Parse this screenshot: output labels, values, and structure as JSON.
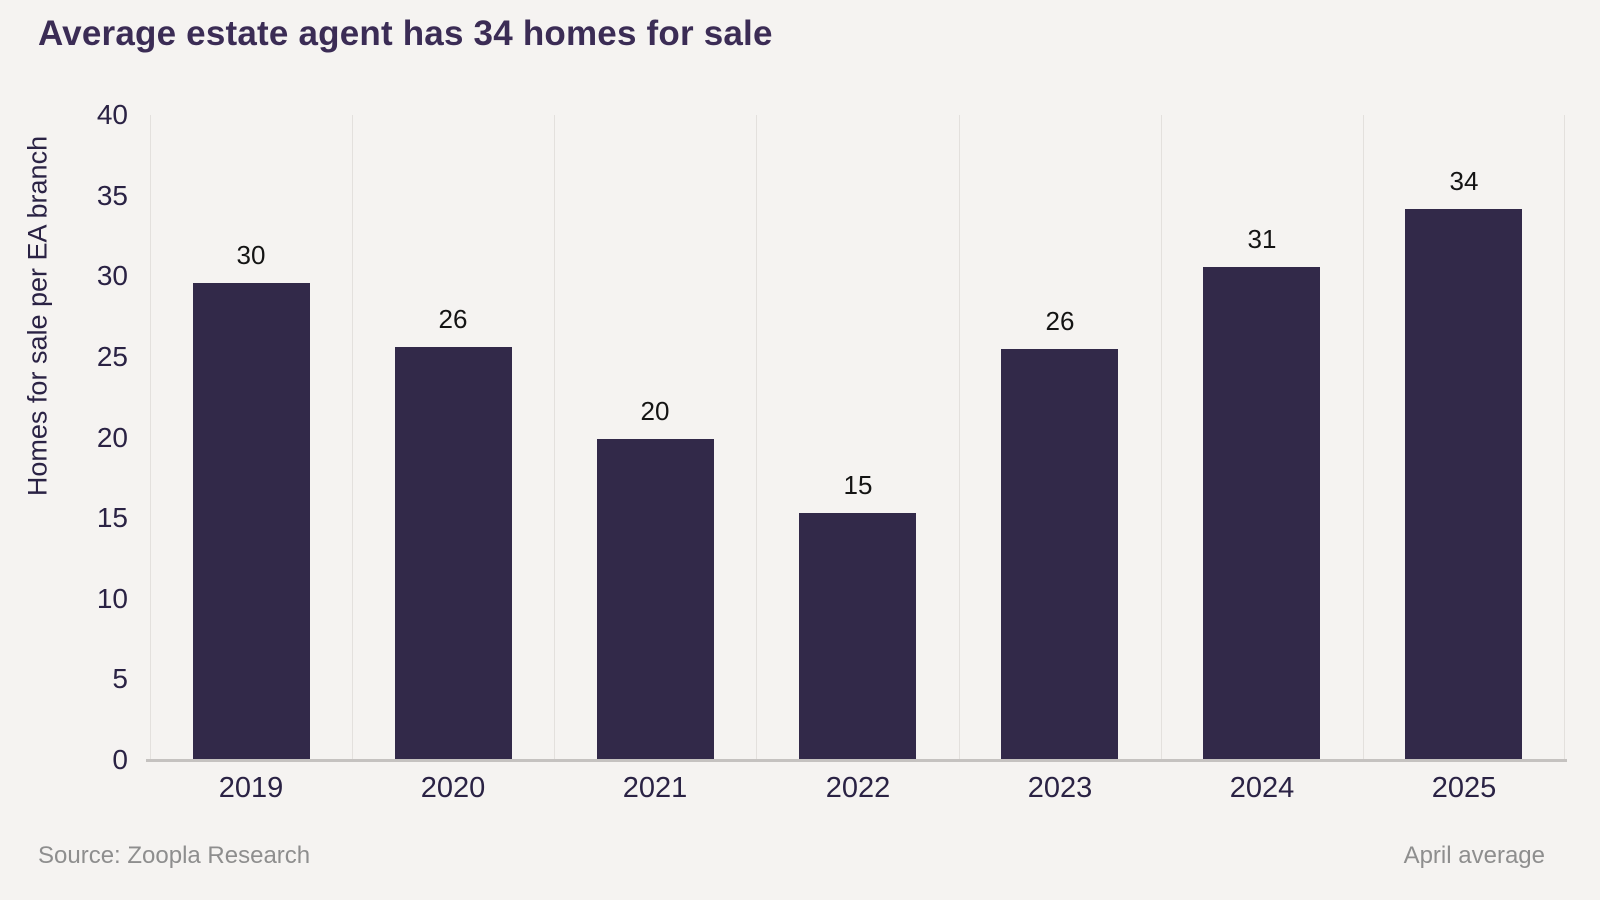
{
  "title": "Average estate agent has 34 homes for sale",
  "footer": {
    "source": "Source: Zoopla Research",
    "right_note": "April average"
  },
  "colors": {
    "background": "#f5f3f1",
    "bar_fill": "#322949",
    "title_text": "#3b2c55",
    "axis_text": "#2a2244",
    "value_label_text": "#141414",
    "gridline": "#e3e0dd",
    "axis_line": "#c5c2c0",
    "muted_text": "#8e8e8e"
  },
  "chart_data": {
    "type": "bar",
    "title": "Average estate agent has 34 homes for sale",
    "categories": [
      "2019",
      "2020",
      "2021",
      "2022",
      "2023",
      "2024",
      "2025"
    ],
    "values": [
      30,
      26,
      20,
      15,
      26,
      31,
      34
    ],
    "bar_heights_plotted": [
      29.6,
      25.6,
      19.9,
      15.3,
      25.5,
      30.6,
      34.2
    ],
    "xlabel": "",
    "ylabel": "Homes for sale per EA branch",
    "ylim": [
      0,
      40
    ],
    "yticks": [
      0,
      5,
      10,
      15,
      20,
      25,
      30,
      35,
      40
    ],
    "grid": "vertical category separators only",
    "legend_position": "none",
    "value_labels_shown": true,
    "annotation": "April average"
  }
}
